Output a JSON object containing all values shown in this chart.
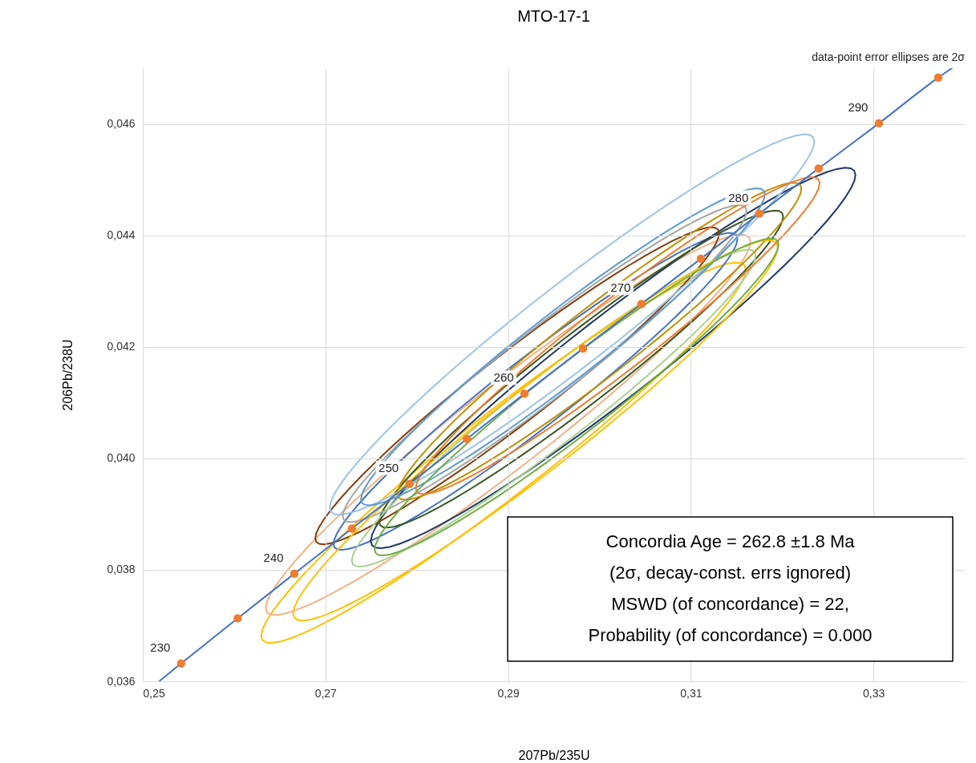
{
  "chart_data": {
    "type": "line",
    "title": "MTO-17-1",
    "subtitle": "data-point error ellipses are 2σ",
    "xlabel": "207Pb/235U",
    "ylabel": "206Pb/238U",
    "xlim": [
      0.25,
      0.34
    ],
    "ylim": [
      0.036,
      0.047
    ],
    "xticks": [
      {
        "value": 0.25,
        "label": "0,25"
      },
      {
        "value": 0.27,
        "label": "0,27"
      },
      {
        "value": 0.29,
        "label": "0,29"
      },
      {
        "value": 0.31,
        "label": "0,31"
      },
      {
        "value": 0.33,
        "label": "0,33"
      }
    ],
    "yticks": [
      {
        "value": 0.036,
        "label": "0,036"
      },
      {
        "value": 0.038,
        "label": "0,038"
      },
      {
        "value": 0.04,
        "label": "0,040"
      },
      {
        "value": 0.042,
        "label": "0,042"
      },
      {
        "value": 0.044,
        "label": "0,044"
      },
      {
        "value": 0.046,
        "label": "0,046"
      }
    ],
    "grid": true,
    "series": [
      {
        "color": "#4472c4",
        "x": [
          0.2518,
          0.2542,
          0.2604,
          0.2666,
          0.2729,
          0.2792,
          0.2855,
          0.2918,
          0.2982,
          0.3046,
          0.3111,
          0.3175,
          0.324,
          0.3306,
          0.3371,
          0.3386
        ],
        "values": [
          0.036,
          0.03632,
          0.03713,
          0.03793,
          0.03874,
          0.03954,
          0.04035,
          0.04116,
          0.04197,
          0.04277,
          0.04358,
          0.04439,
          0.0452,
          0.04601,
          0.04683,
          0.047
        ]
      },
      {
        "type": "scatter",
        "marker": "circle",
        "color": "#ed7d31",
        "x": [
          0.2542,
          0.2604,
          0.2666,
          0.2729,
          0.2792,
          0.2855,
          0.2918,
          0.2982,
          0.3046,
          0.3111,
          0.3175,
          0.324,
          0.3306,
          0.3371
        ],
        "values": [
          0.03632,
          0.03713,
          0.03793,
          0.03874,
          0.03954,
          0.04035,
          0.04116,
          0.04197,
          0.04277,
          0.04358,
          0.04439,
          0.0452,
          0.04601,
          0.04683
        ]
      }
    ],
    "annotations": [
      {
        "text": "230",
        "x": 0.2542,
        "y": 0.03632
      },
      {
        "text": "240",
        "x": 0.2666,
        "y": 0.03793
      },
      {
        "text": "250",
        "x": 0.2792,
        "y": 0.03954
      },
      {
        "text": "260",
        "x": 0.2918,
        "y": 0.04116
      },
      {
        "text": "270",
        "x": 0.3046,
        "y": 0.04277
      },
      {
        "text": "280",
        "x": 0.3175,
        "y": 0.04439
      },
      {
        "text": "290",
        "x": 0.3306,
        "y": 0.04601
      },
      "Concordia  Age = 262.8 ±1.8 Ma",
      "(2σ, decay-const. errs ignored)",
      "MSWD (of concordance) = 22,",
      "Probability  (of concordance) = 0.000"
    ]
  }
}
